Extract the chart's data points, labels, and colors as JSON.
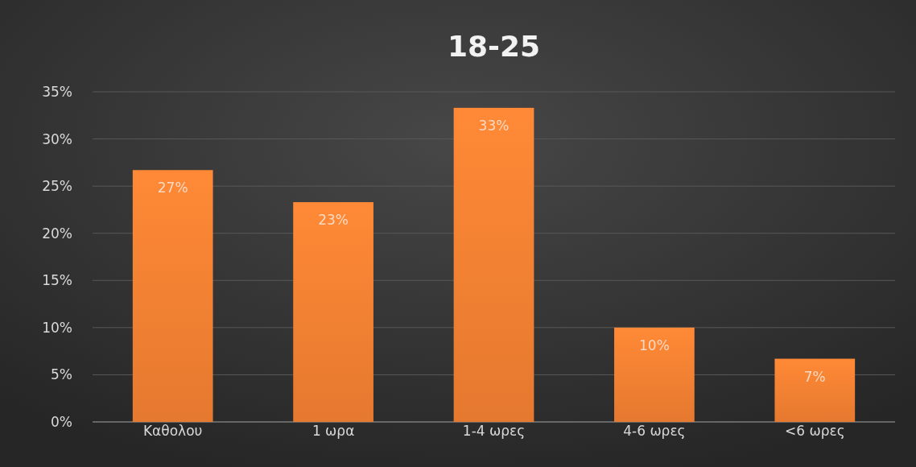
{
  "chart_data": {
    "type": "bar",
    "title": "18-25",
    "categories": [
      "Καθολου",
      "1 ωρα",
      "1-4 ωρες",
      "4-6 ωρες",
      "<6 ωρες"
    ],
    "values": [
      26.7,
      23.3,
      33.3,
      10,
      6.7
    ],
    "value_labels": [
      "27%",
      "23%",
      "33%",
      "10%",
      "7%"
    ],
    "color": "#ed7d31",
    "ylim": [
      0,
      35
    ],
    "yticks": [
      {
        "value": 0,
        "label": "0%"
      },
      {
        "value": 5,
        "label": "5%"
      },
      {
        "value": 10,
        "label": "10%"
      },
      {
        "value": 15,
        "label": "15%"
      },
      {
        "value": 20,
        "label": "20%"
      },
      {
        "value": 25,
        "label": "25%"
      },
      {
        "value": 30,
        "label": "30%"
      },
      {
        "value": 35,
        "label": "35%"
      }
    ],
    "grid": "y"
  }
}
